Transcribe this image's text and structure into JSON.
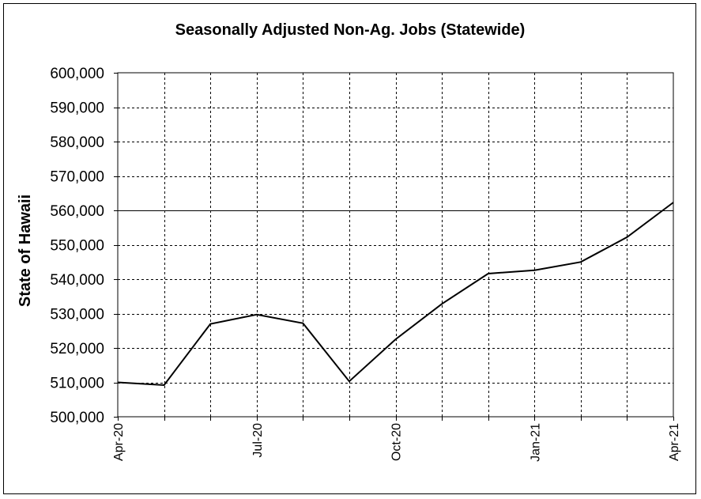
{
  "chart_data": {
    "type": "line",
    "title": "Seasonally Adjusted Non-Ag. Jobs (Statewide)",
    "xlabel": "",
    "ylabel": "State of Hawaii",
    "ylim": [
      500000,
      600000
    ],
    "y_ticks": [
      500000,
      510000,
      520000,
      530000,
      540000,
      550000,
      560000,
      570000,
      580000,
      590000,
      600000
    ],
    "y_tick_labels": [
      "500,000",
      "510,000",
      "520,000",
      "530,000",
      "540,000",
      "550,000",
      "560,000",
      "570,000",
      "580,000",
      "590,000",
      "600,000"
    ],
    "x": [
      "Apr-20",
      "May-20",
      "Jun-20",
      "Jul-20",
      "Aug-20",
      "Sep-20",
      "Oct-20",
      "Nov-20",
      "Dec-20",
      "Jan-21",
      "Feb-21",
      "Mar-21",
      "Apr-21"
    ],
    "x_tick_labels": [
      "Apr-20",
      "",
      "",
      "Jul-20",
      "",
      "",
      "Oct-20",
      "",
      "",
      "Jan-21",
      "",
      "",
      "Apr-21"
    ],
    "series": [
      {
        "values": [
          510000,
          509200,
          527000,
          529700,
          527200,
          510300,
          522500,
          532800,
          541600,
          542600,
          545000,
          552200,
          562300
        ]
      }
    ],
    "reference_line": 560000,
    "grid": "dashed",
    "legend": "none",
    "colors": {
      "line": "#000000",
      "grid": "#000000"
    }
  }
}
